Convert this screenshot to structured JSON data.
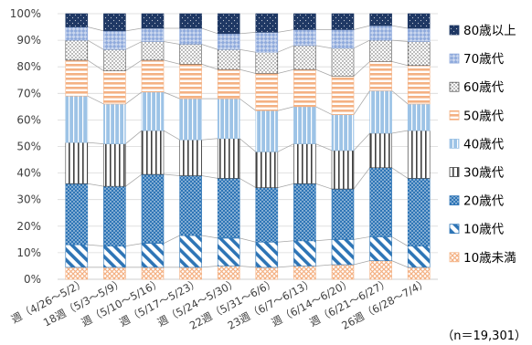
{
  "chart_data": {
    "type": "bar",
    "stacked": "percent",
    "categories": [
      "週（4/26～5/2）",
      "18週（5/3～5/9）",
      "週（5/10～5/16）",
      "週（5/17～5/23）",
      "週（5/24～5/30）",
      "22週（5/31～6/6）",
      "23週（6/7～6/13）",
      "週（6/14～6/20）",
      "週（6/21～6/27）",
      "26週（6/28～7/4）"
    ],
    "series": [
      {
        "name": "10歳未満",
        "color": "#F4B183",
        "values": [
          4.5,
          4.5,
          4.5,
          4.5,
          5,
          4.5,
          5,
          5.5,
          7,
          4.5
        ]
      },
      {
        "name": "10歳代",
        "color": "#2E75B6",
        "values": [
          8.5,
          8,
          9,
          12,
          10.5,
          9.5,
          9.5,
          9.5,
          9,
          8
        ]
      },
      {
        "name": "20歳代",
        "color": "#2E75B6",
        "values": [
          23,
          22.5,
          26,
          22.5,
          22.5,
          20.5,
          21.5,
          19,
          26,
          25.5
        ]
      },
      {
        "name": "30歳代",
        "color": "#404040",
        "values": [
          15.5,
          16,
          16.5,
          13.5,
          15,
          13.5,
          15,
          14.5,
          13,
          18
        ]
      },
      {
        "name": "40歳代",
        "color": "#9DC3E6",
        "values": [
          17.5,
          15,
          14.5,
          15.5,
          15,
          15.5,
          14,
          13.5,
          16,
          10
        ]
      },
      {
        "name": "50歳代",
        "color": "#F4B183",
        "values": [
          13.5,
          12.5,
          12,
          13,
          11,
          14,
          14,
          14.5,
          11,
          14.5
        ]
      },
      {
        "name": "60歳代",
        "color": "#595959",
        "values": [
          7.5,
          8,
          7,
          7.5,
          7.5,
          8,
          9,
          10.5,
          8,
          9
        ]
      },
      {
        "name": "70歳代",
        "color": "#8FAADC",
        "values": [
          5,
          7,
          5,
          6,
          6,
          7.5,
          6,
          7,
          5.5,
          5
        ]
      },
      {
        "name": "80歳以上",
        "color": "#1F3864",
        "values": [
          5,
          6.5,
          5.5,
          5.5,
          7.5,
          7,
          6,
          6,
          4.5,
          5.5
        ]
      }
    ],
    "ylim": [
      0,
      100
    ],
    "yticks": [
      "0%",
      "10%",
      "20%",
      "30%",
      "40%",
      "50%",
      "60%",
      "70%",
      "80%",
      "90%",
      "100%"
    ],
    "grid": true,
    "legend": "right",
    "note": "（n＝19,301）"
  }
}
